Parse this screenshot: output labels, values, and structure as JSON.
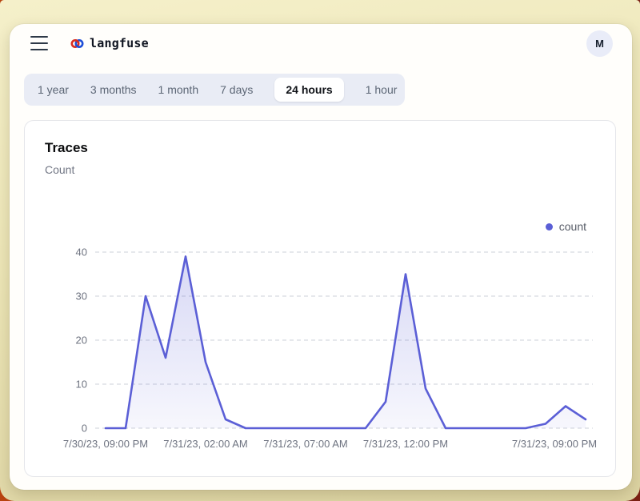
{
  "header": {
    "brand": "langfuse",
    "avatar_initial": "M",
    "icons": {
      "menu": "hamburger-icon",
      "logo": "knot-icon"
    }
  },
  "time_range_tabs": [
    {
      "label": "1 year",
      "active": false
    },
    {
      "label": "3 months",
      "active": false
    },
    {
      "label": "1 month",
      "active": false
    },
    {
      "label": "7 days",
      "active": false
    },
    {
      "label": "24 hours",
      "active": true
    },
    {
      "label": "1 hour",
      "active": false
    }
  ],
  "card": {
    "title": "Traces",
    "subtitle": "Count"
  },
  "colors": {
    "accent_line": "#5b5fd6",
    "grid": "#cdd1d9",
    "axis_text": "#6e7380",
    "tabbar_bg": "#e9ecf5",
    "frame_tan": "#e8e0b0"
  },
  "chart_data": {
    "type": "area",
    "title": "Traces",
    "ylabel": "Count",
    "ylim": [
      0,
      40
    ],
    "y_ticks": [
      0,
      10,
      20,
      30,
      40
    ],
    "grid": "horizontal dashed",
    "legend": {
      "label": "count",
      "position": "top-right",
      "color": "#5b5fd6"
    },
    "series": [
      {
        "name": "count",
        "color": "#5b5fd6",
        "values": [
          0,
          0,
          30,
          16,
          39,
          15,
          2,
          0,
          0,
          0,
          0,
          0,
          0,
          0,
          6,
          35,
          9,
          0,
          0,
          0,
          0,
          0,
          1,
          5,
          2
        ]
      }
    ],
    "x_ticks": [
      {
        "label": "7/30/23, 09:00 PM",
        "index": 0
      },
      {
        "label": "7/31/23, 02:00 AM",
        "index": 5
      },
      {
        "label": "7/31/23, 07:00 AM",
        "index": 10
      },
      {
        "label": "7/31/23, 12:00 PM",
        "index": 15
      },
      {
        "label": "7/31/23, 09:00 PM",
        "index": 24
      }
    ]
  }
}
